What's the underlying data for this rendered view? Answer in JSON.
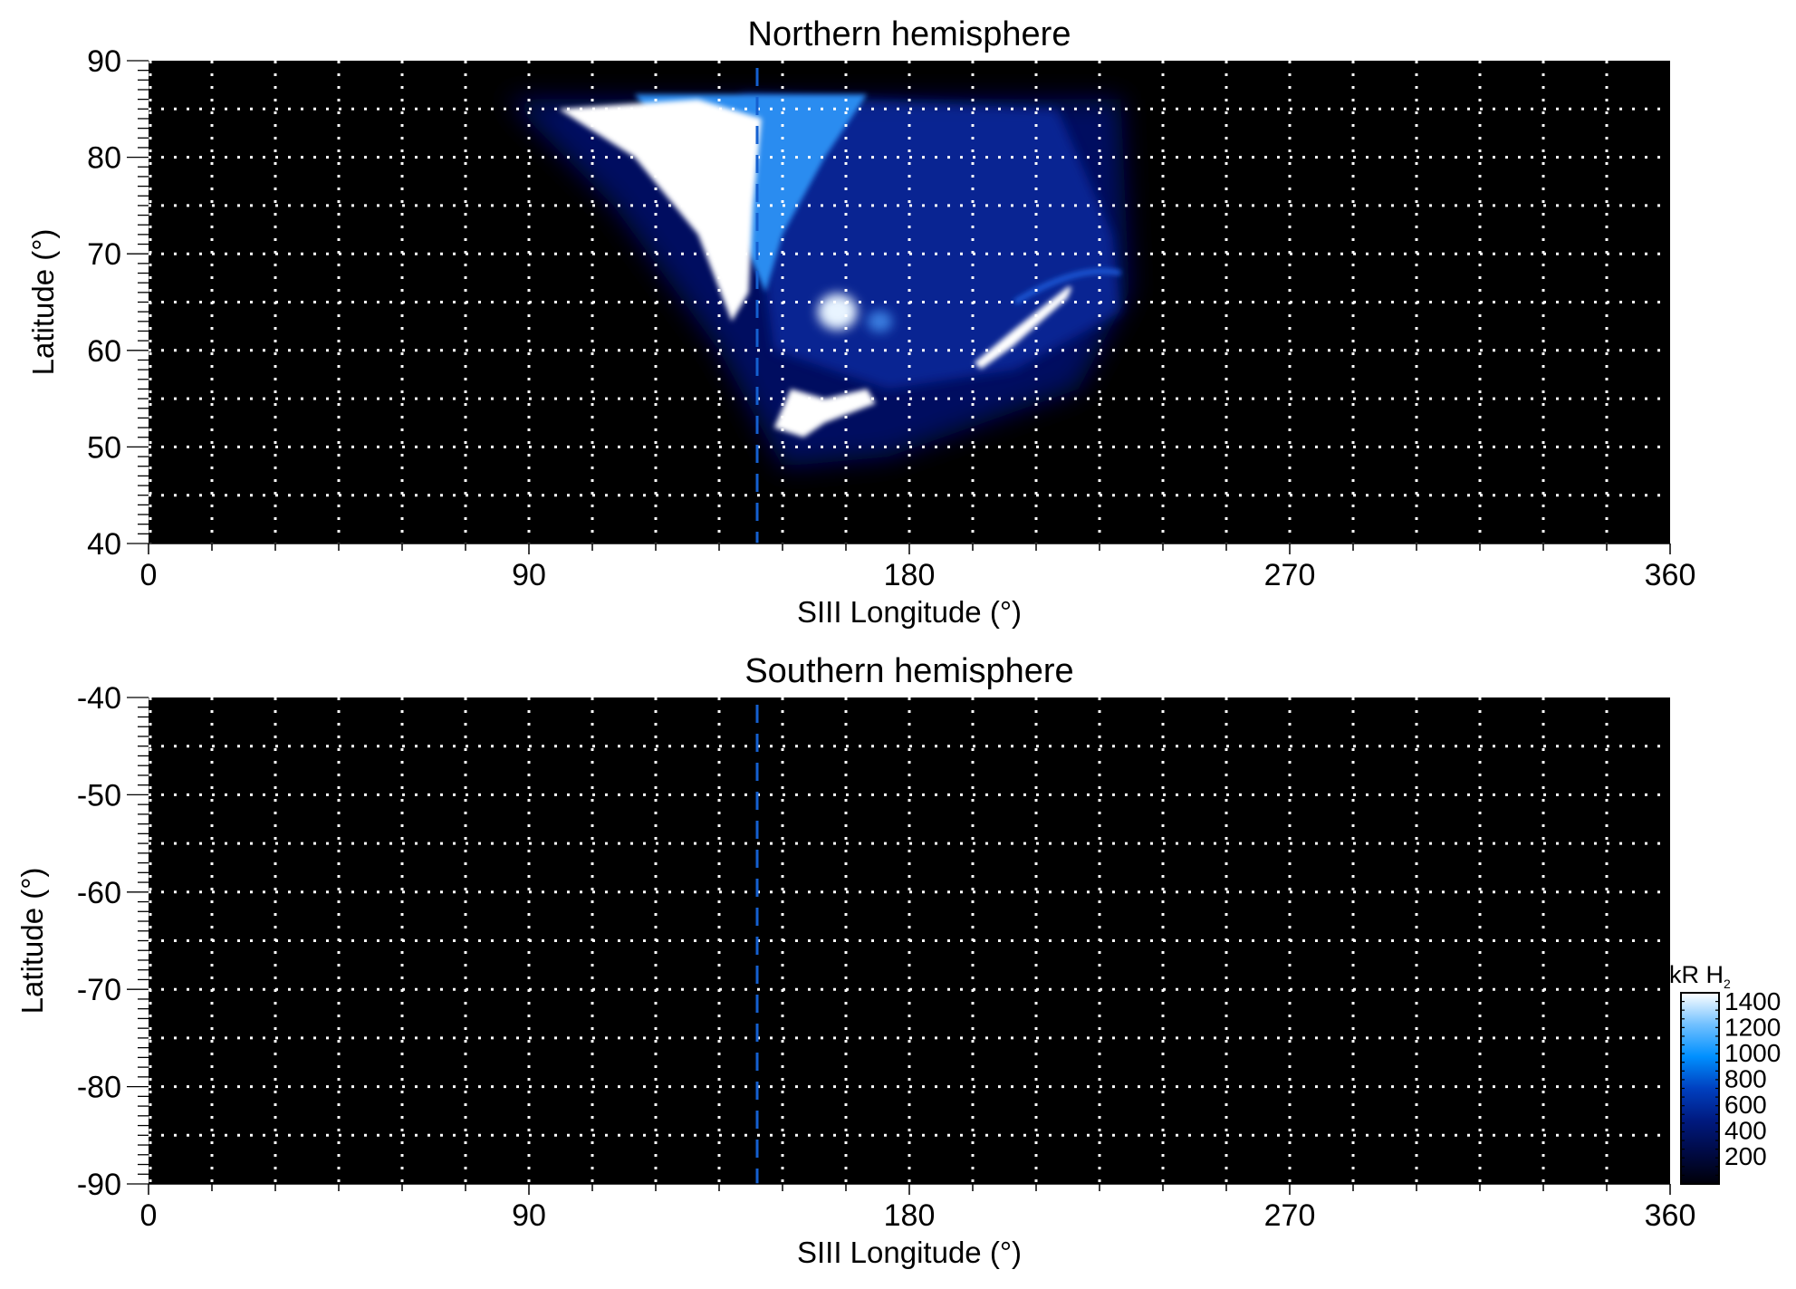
{
  "chart_data": [
    {
      "type": "heatmap",
      "title": "Northern hemisphere",
      "xlabel": "SIII Longitude (°)",
      "ylabel": "Latitude (°)",
      "xlim": [
        0,
        360
      ],
      "ylim": [
        40,
        90
      ],
      "xticks": [
        0,
        90,
        180,
        270,
        360
      ],
      "yticks": [
        40,
        50,
        60,
        70,
        80,
        90
      ],
      "grid": {
        "on": true,
        "style": "dotted",
        "color": "#ffffff",
        "x_step": 15,
        "y_step": 5
      },
      "reference_line": {
        "longitude": 144,
        "style": "dashed",
        "color": "#1560d0"
      },
      "background": "#000000",
      "emission_regions": [
        {
          "label": "main oval arc",
          "lon_range": [
            97,
            145
          ],
          "lat_range": [
            58,
            86
          ],
          "intensity_kR": 1400
        },
        {
          "label": "polar region",
          "lon_range": [
            110,
            230
          ],
          "lat_range": [
            48,
            87
          ],
          "intensity_kR": 400
        },
        {
          "label": "bright spot",
          "lon": 163,
          "lat": 64,
          "intensity_kR": 1300
        },
        {
          "label": "bright patch",
          "lon_range": [
            148,
            172
          ],
          "lat_range": [
            51,
            57
          ],
          "intensity_kR": 1400
        },
        {
          "label": "arc streak",
          "lon_range": [
            196,
            220
          ],
          "lat_range": [
            59,
            67
          ],
          "intensity_kR": 1300
        }
      ]
    },
    {
      "type": "heatmap",
      "title": "Southern hemisphere",
      "xlabel": "SIII Longitude (°)",
      "ylabel": "Latitude (°)",
      "xlim": [
        0,
        360
      ],
      "ylim": [
        -90,
        -40
      ],
      "xticks": [
        0,
        90,
        180,
        270,
        360
      ],
      "yticks": [
        -40,
        -50,
        -60,
        -70,
        -80,
        -90
      ],
      "grid": {
        "on": true,
        "style": "dotted",
        "color": "#ffffff",
        "x_step": 15,
        "y_step": 5
      },
      "reference_line": {
        "longitude": 144,
        "style": "dashed",
        "color": "#1560d0"
      },
      "background": "#000000",
      "emission_regions": []
    }
  ],
  "colorbar": {
    "title": "kR H",
    "title_subscript": "2",
    "ticks": [
      "200",
      "400",
      "600",
      "800",
      "1000",
      "1200",
      "1400"
    ],
    "colors": [
      "#000008",
      "#000a45",
      "#001a80",
      "#0040c0",
      "#0090ff",
      "#70c0ff",
      "#ffffff"
    ]
  }
}
